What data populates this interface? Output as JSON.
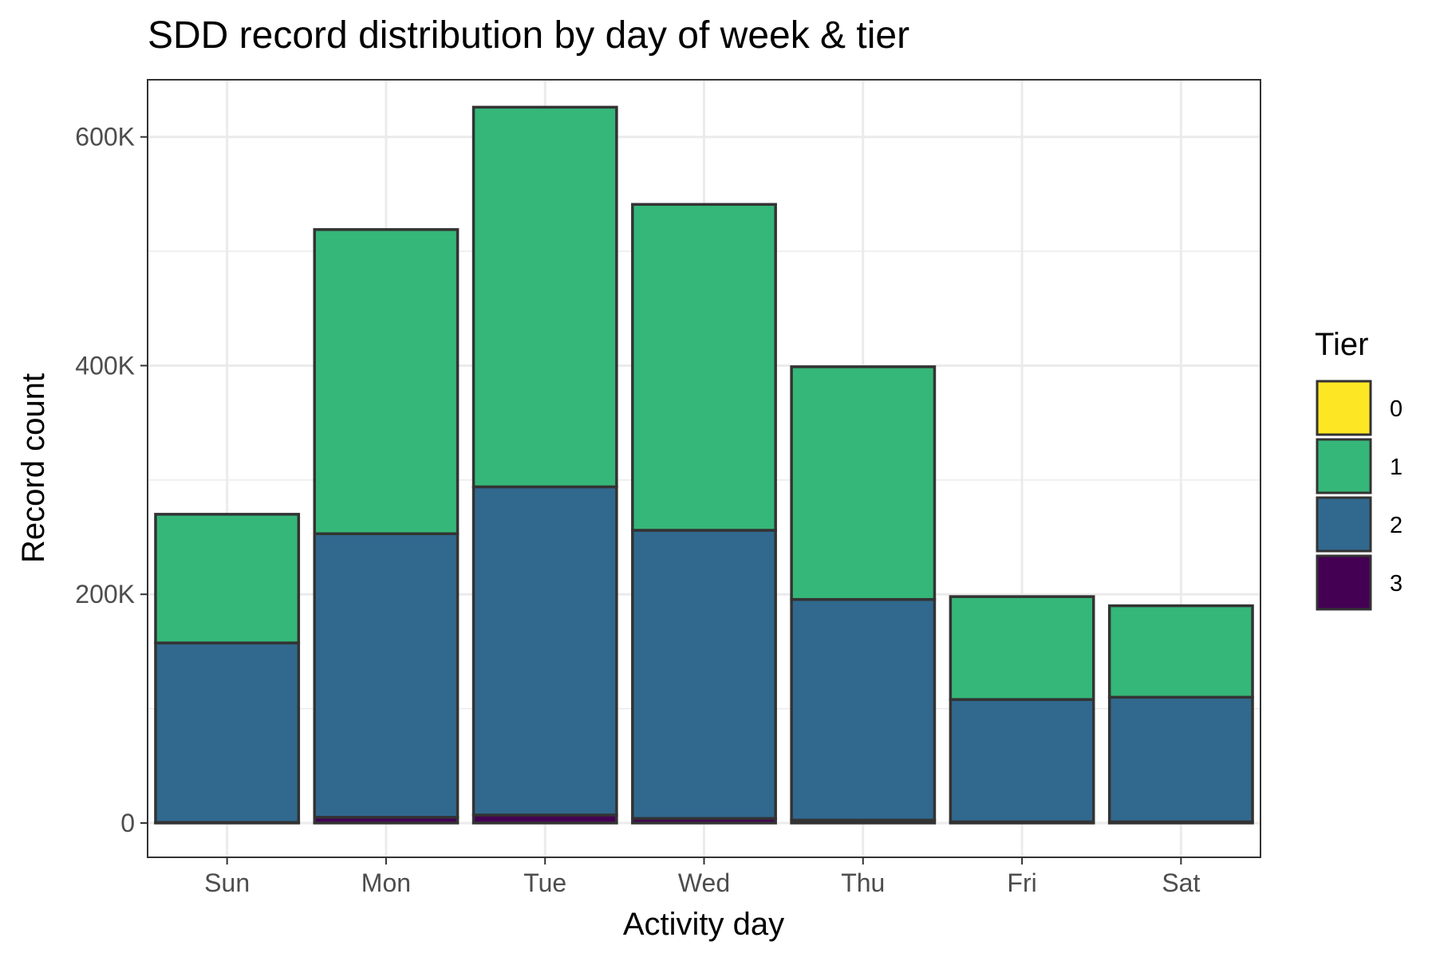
{
  "chart_data": {
    "type": "bar",
    "stacked": true,
    "title": "SDD record distribution by day of week & tier",
    "xlabel": "Activity day",
    "ylabel": "Record count",
    "categories": [
      "Sun",
      "Mon",
      "Tue",
      "Wed",
      "Thu",
      "Fri",
      "Sat"
    ],
    "ylim": [
      -30000,
      650000
    ],
    "yticks": [
      0,
      200000,
      400000,
      600000
    ],
    "ytick_labels": [
      "0",
      "200K",
      "400K",
      "600K"
    ],
    "legend_title": "Tier",
    "legend_position": "right",
    "grid": true,
    "series": [
      {
        "name": "3",
        "color": "#440154",
        "values": [
          500,
          5000,
          7000,
          4000,
          2500,
          1000,
          1000
        ]
      },
      {
        "name": "2",
        "color": "#31688E",
        "values": [
          157000,
          248000,
          287000,
          252000,
          193000,
          107000,
          109000
        ]
      },
      {
        "name": "1",
        "color": "#35B779",
        "values": [
          112500,
          266000,
          332000,
          285000,
          203500,
          90000,
          80000
        ]
      },
      {
        "name": "0",
        "color": "#FDE725",
        "values": [
          0,
          0,
          0,
          0,
          0,
          0,
          0
        ]
      }
    ],
    "legend_order": [
      "0",
      "1",
      "2",
      "3"
    ]
  }
}
